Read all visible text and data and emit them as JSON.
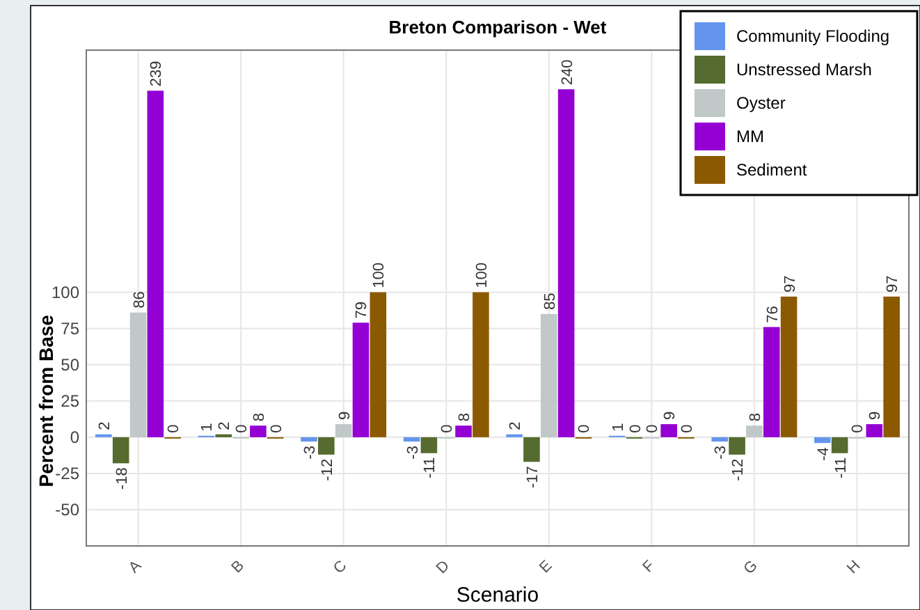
{
  "chart_data": {
    "type": "bar",
    "title": "Breton Comparison - Wet",
    "xlabel": "Scenario",
    "ylabel": "Percent from Base",
    "categories": [
      "A",
      "B",
      "C",
      "D",
      "E",
      "F",
      "G",
      "H"
    ],
    "series": [
      {
        "name": "Community Flooding",
        "color": "#6495ed",
        "values": [
          2,
          1,
          -3,
          -3,
          2,
          1,
          -3,
          -4
        ]
      },
      {
        "name": "Unstressed Marsh",
        "color": "#556b2f",
        "values": [
          -18,
          2,
          -12,
          -11,
          -17,
          0,
          -12,
          -11
        ]
      },
      {
        "name": "Oyster",
        "color": "#c0c8c8",
        "values": [
          86,
          0,
          9,
          0,
          85,
          0,
          8,
          0
        ]
      },
      {
        "name": "MM",
        "color": "#9400d3",
        "values": [
          239,
          8,
          79,
          8,
          240,
          9,
          76,
          9
        ]
      },
      {
        "name": "Sediment",
        "color": "#8b5a00",
        "values": [
          0,
          0,
          100,
          100,
          0,
          0,
          97,
          97
        ]
      }
    ],
    "ylim": [
      -75,
      267
    ],
    "yticks": [
      -50,
      -25,
      0,
      25,
      50,
      75,
      100
    ],
    "grid": true,
    "legend": "top right",
    "data_labels": true
  }
}
